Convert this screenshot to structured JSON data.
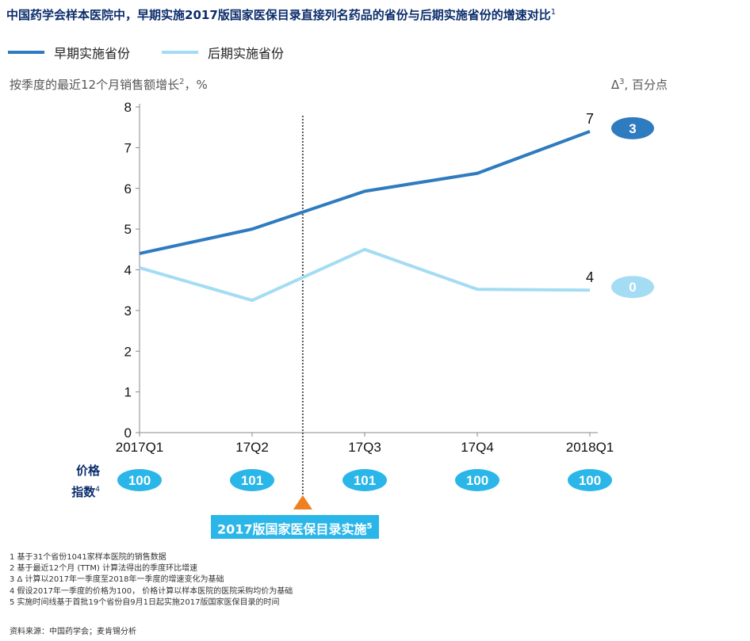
{
  "title": "中国药学会样本医院中，早期实施2017版国家医保目录直接列名药品的省份与后期实施省份的增速对比",
  "title_sup": "1",
  "legend": [
    {
      "label": "早期实施省份",
      "color": "#2e7bbf"
    },
    {
      "label": "后期实施省份",
      "color": "#a3dcf3"
    }
  ],
  "y_axis_label": "按季度的最近12个月销售额增长",
  "y_axis_label_sup": "2",
  "y_axis_label_suffix": "，%",
  "delta_label_symbol": "Δ",
  "delta_label_sup": "3",
  "delta_label_suffix": ", 百分点",
  "price_label": {
    "line1": "价格",
    "line2": "指数",
    "sup": "4"
  },
  "implementation_label": "2017版国家医保目录实施",
  "implementation_sup": "5",
  "footnotes": [
    "1 基于31个省份1041家样本医院的销售数据",
    "2 基于最近12个月 (TTM) 计算法得出的季度环比增速",
    "3 Δ 计算以2017年一季度至2018年一季度的增速变化为基础",
    "4 假设2017年一季度的价格为100， 价格计算以样本医院的医院采购均价为基础",
    "5 实施时间线基于首批19个省份自9月1日起实施2017版国家医保目录的时间"
  ],
  "source": "资料来源：中国药学会；麦肯锡分析",
  "colors": {
    "early": "#2e7bbf",
    "late": "#a3dcf3",
    "price_bubble": "#2ab6e8",
    "marker": "#f07f22",
    "axis": "#888888"
  },
  "chart_data": {
    "type": "line",
    "categories": [
      "2017Q1",
      "17Q2",
      "17Q3",
      "17Q4",
      "2018Q1"
    ],
    "ylim": [
      0,
      8
    ],
    "yticks": [
      "0",
      "1",
      "2",
      "3",
      "4",
      "5",
      "6",
      "7",
      "8"
    ],
    "series": [
      {
        "name": "早期实施省份",
        "values": [
          4.4,
          5.0,
          5.93,
          6.37,
          7.4
        ],
        "end_label": "7",
        "delta": "3"
      },
      {
        "name": "后期实施省份",
        "values": [
          4.05,
          3.25,
          4.5,
          3.52,
          3.5
        ],
        "end_label": "4",
        "delta": "0"
      }
    ],
    "price_index": [
      "100",
      "101",
      "101",
      "100",
      "100"
    ],
    "implementation_position": 1.45
  }
}
